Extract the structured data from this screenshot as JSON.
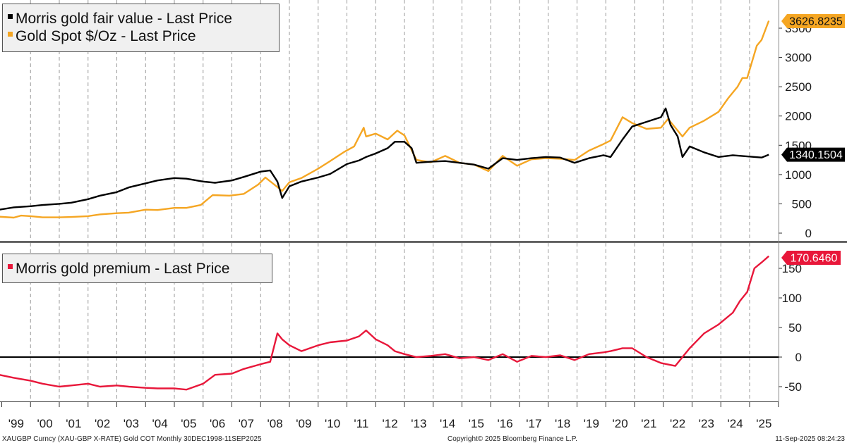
{
  "chart_data": [
    {
      "panel": "top",
      "type": "line",
      "legend_position": "top-left",
      "grid": "vertical dashed at year boundaries",
      "x_start": "1998-12",
      "x_end": "2025-09",
      "ylim": [
        0,
        3600
      ],
      "yticks": [
        0,
        500,
        1000,
        1500,
        2000,
        2500,
        3000,
        3500
      ],
      "series": [
        {
          "name": "Morris gold fair value - Last Price",
          "color": "#000000",
          "last_value_label": "1340.1504",
          "x": [
            "1998-12",
            "1999-06",
            "2000-01",
            "2000-06",
            "2001-01",
            "2001-06",
            "2002-01",
            "2002-06",
            "2003-01",
            "2003-06",
            "2004-01",
            "2004-06",
            "2005-01",
            "2005-06",
            "2006-01",
            "2006-06",
            "2007-01",
            "2007-06",
            "2008-01",
            "2008-05",
            "2008-08",
            "2008-10",
            "2009-01",
            "2009-06",
            "2010-01",
            "2010-06",
            "2011-01",
            "2011-06",
            "2011-09",
            "2012-01",
            "2012-06",
            "2012-09",
            "2013-01",
            "2013-04",
            "2013-06",
            "2013-12",
            "2014-06",
            "2014-12",
            "2015-06",
            "2015-12",
            "2016-06",
            "2016-12",
            "2017-06",
            "2017-12",
            "2018-06",
            "2018-12",
            "2019-06",
            "2019-12",
            "2020-03",
            "2020-08",
            "2020-12",
            "2021-06",
            "2021-12",
            "2022-02",
            "2022-04",
            "2022-07",
            "2022-09",
            "2022-12",
            "2023-06",
            "2023-12",
            "2024-06",
            "2024-12",
            "2025-06",
            "2025-09"
          ],
          "y": [
            400,
            440,
            460,
            480,
            500,
            520,
            580,
            640,
            700,
            780,
            850,
            900,
            940,
            930,
            880,
            860,
            900,
            960,
            1050,
            1070,
            880,
            600,
            800,
            880,
            950,
            1010,
            1180,
            1240,
            1300,
            1360,
            1450,
            1560,
            1560,
            1450,
            1200,
            1220,
            1230,
            1200,
            1170,
            1100,
            1280,
            1250,
            1280,
            1300,
            1290,
            1200,
            1280,
            1330,
            1300,
            1600,
            1820,
            1900,
            1980,
            2130,
            1850,
            1650,
            1300,
            1480,
            1380,
            1300,
            1330,
            1310,
            1290,
            1340
          ]
        },
        {
          "name": "Gold Spot $/Oz - Last Price",
          "color": "#f5a623",
          "last_value_label": "3626.8235",
          "x": [
            "1998-12",
            "1999-06",
            "1999-09",
            "2000-01",
            "2000-06",
            "2001-01",
            "2001-06",
            "2002-01",
            "2002-06",
            "2003-01",
            "2003-06",
            "2004-01",
            "2004-06",
            "2005-01",
            "2005-06",
            "2005-12",
            "2006-05",
            "2006-12",
            "2007-06",
            "2007-12",
            "2008-03",
            "2008-10",
            "2009-01",
            "2009-06",
            "2010-01",
            "2010-06",
            "2010-12",
            "2011-04",
            "2011-08",
            "2011-09",
            "2012-01",
            "2012-06",
            "2012-10",
            "2013-01",
            "2013-06",
            "2013-12",
            "2014-06",
            "2014-12",
            "2015-06",
            "2015-12",
            "2016-06",
            "2016-12",
            "2017-06",
            "2017-12",
            "2018-06",
            "2018-12",
            "2019-06",
            "2019-12",
            "2020-03",
            "2020-08",
            "2020-12",
            "2021-06",
            "2021-12",
            "2022-03",
            "2022-09",
            "2022-12",
            "2023-06",
            "2023-12",
            "2024-04",
            "2024-08",
            "2024-10",
            "2024-12",
            "2025-04",
            "2025-06",
            "2025-09"
          ],
          "y": [
            280,
            265,
            300,
            290,
            270,
            270,
            275,
            290,
            320,
            340,
            350,
            400,
            395,
            430,
            430,
            480,
            650,
            640,
            670,
            830,
            950,
            720,
            870,
            940,
            1100,
            1230,
            1390,
            1480,
            1800,
            1650,
            1700,
            1600,
            1750,
            1670,
            1250,
            1210,
            1320,
            1200,
            1170,
            1060,
            1320,
            1150,
            1260,
            1280,
            1270,
            1250,
            1410,
            1520,
            1580,
            1980,
            1880,
            1780,
            1800,
            1950,
            1650,
            1800,
            1920,
            2070,
            2300,
            2500,
            2650,
            2650,
            3200,
            3300,
            3626.8235
          ]
        }
      ]
    },
    {
      "panel": "bottom",
      "type": "line",
      "legend_position": "top-left",
      "grid": "vertical dashed at year boundaries; solid zero line",
      "ylim": [
        -75,
        180
      ],
      "yticks": [
        -50,
        0,
        50,
        100,
        150
      ],
      "series": [
        {
          "name": "Morris gold premium - Last Price",
          "color": "#e8173a",
          "last_value_label": "170.6460",
          "x": [
            "1998-12",
            "1999-06",
            "2000-01",
            "2000-06",
            "2001-01",
            "2001-06",
            "2002-01",
            "2002-06",
            "2003-01",
            "2003-06",
            "2004-01",
            "2004-06",
            "2005-01",
            "2005-06",
            "2006-01",
            "2006-06",
            "2007-01",
            "2007-06",
            "2008-01",
            "2008-05",
            "2008-08",
            "2008-10",
            "2009-01",
            "2009-06",
            "2010-01",
            "2010-06",
            "2011-01",
            "2011-06",
            "2011-09",
            "2012-01",
            "2012-06",
            "2012-09",
            "2013-01",
            "2013-06",
            "2013-12",
            "2014-06",
            "2014-12",
            "2015-06",
            "2015-12",
            "2016-06",
            "2016-12",
            "2017-06",
            "2017-12",
            "2018-06",
            "2018-12",
            "2019-06",
            "2019-12",
            "2020-03",
            "2020-08",
            "2020-12",
            "2021-06",
            "2021-12",
            "2022-06",
            "2022-12",
            "2023-06",
            "2023-12",
            "2024-06",
            "2024-09",
            "2024-12",
            "2025-03",
            "2025-06",
            "2025-09"
          ],
          "y": [
            -30,
            -35,
            -40,
            -45,
            -50,
            -48,
            -45,
            -50,
            -48,
            -50,
            -52,
            -53,
            -53,
            -55,
            -45,
            -30,
            -28,
            -20,
            -12,
            -8,
            40,
            30,
            20,
            10,
            20,
            25,
            28,
            35,
            45,
            30,
            20,
            10,
            5,
            0,
            2,
            5,
            -2,
            0,
            -5,
            5,
            -8,
            2,
            0,
            3,
            -5,
            5,
            8,
            10,
            15,
            15,
            0,
            -10,
            -15,
            15,
            40,
            55,
            75,
            95,
            110,
            150,
            160,
            170.646
          ]
        }
      ]
    }
  ],
  "x_axis_labels": [
    "'99",
    "'00",
    "'01",
    "'02",
    "'03",
    "'04",
    "'05",
    "'06",
    "'07",
    "'08",
    "'09",
    "'10",
    "'11",
    "'12",
    "'13",
    "'14",
    "'15",
    "'16",
    "'17",
    "'18",
    "'19",
    "'20",
    "'21",
    "'22",
    "'23",
    "'24",
    "'25"
  ],
  "footer": {
    "left": "XAUGBP Curncy (XAU-GBP X-RATE) Gold COT  Monthly 30DEC1998-11SEP2025",
    "center": "Copyright© 2025 Bloomberg Finance L.P.",
    "right": "11-Sep-2025 08:24:23"
  },
  "colors": {
    "fair_value": "#000000",
    "gold_spot": "#f5a623",
    "premium": "#e8173a",
    "grid": "#999999",
    "panel_divider": "#444444"
  }
}
